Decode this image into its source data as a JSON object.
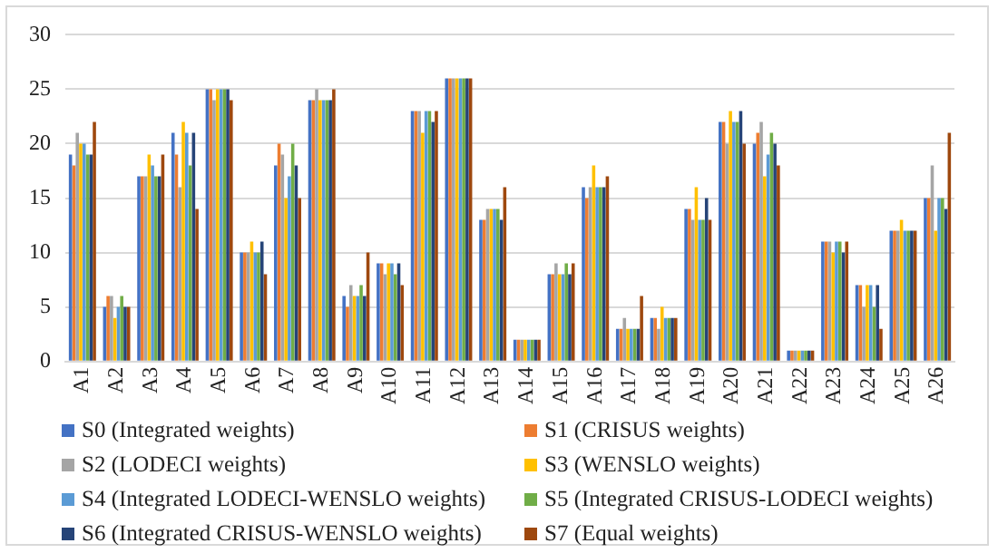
{
  "chart_data": {
    "type": "bar",
    "categories": [
      "A1",
      "A2",
      "A3",
      "A4",
      "A5",
      "A6",
      "A7",
      "A8",
      "A9",
      "A10",
      "A11",
      "A12",
      "A13",
      "A14",
      "A15",
      "A16",
      "A17",
      "A18",
      "A19",
      "A20",
      "A21",
      "A22",
      "A23",
      "A24",
      "A25",
      "A26"
    ],
    "series": [
      {
        "name": "S0 (Integrated weights)",
        "color": "#4472c4",
        "values": [
          19,
          5,
          17,
          21,
          25,
          10,
          18,
          24,
          6,
          9,
          23,
          26,
          13,
          2,
          8,
          16,
          3,
          4,
          14,
          22,
          20,
          1,
          11,
          7,
          12,
          15
        ]
      },
      {
        "name": "S1 (CRISUS weights)",
        "color": "#ed7d31",
        "values": [
          18,
          6,
          17,
          19,
          25,
          10,
          20,
          24,
          5,
          9,
          23,
          26,
          13,
          2,
          8,
          15,
          3,
          4,
          14,
          22,
          21,
          1,
          11,
          7,
          12,
          15
        ]
      },
      {
        "name": "S2 (LODECI weights)",
        "color": "#a5a5a5",
        "values": [
          21,
          6,
          17,
          16,
          24,
          10,
          19,
          25,
          7,
          8,
          23,
          26,
          14,
          2,
          9,
          16,
          4,
          3,
          13,
          20,
          22,
          1,
          11,
          5,
          12,
          18
        ]
      },
      {
        "name": "S3 (WENSLO weights)",
        "color": "#ffc000",
        "values": [
          20,
          4,
          19,
          22,
          25,
          11,
          15,
          24,
          6,
          9,
          21,
          26,
          14,
          2,
          8,
          18,
          3,
          5,
          16,
          23,
          17,
          1,
          10,
          7,
          13,
          12
        ]
      },
      {
        "name": "S4 (Integrated LODECI-WENSLO weights)",
        "color": "#5b9bd5",
        "values": [
          20,
          5,
          18,
          21,
          25,
          10,
          17,
          24,
          6,
          9,
          23,
          26,
          14,
          2,
          8,
          16,
          3,
          4,
          13,
          22,
          19,
          1,
          11,
          7,
          12,
          15
        ]
      },
      {
        "name": "S5 (Integrated CRISUS-LODECI weights)",
        "color": "#70ad47",
        "values": [
          19,
          6,
          17,
          18,
          25,
          10,
          20,
          24,
          7,
          8,
          23,
          26,
          14,
          2,
          9,
          16,
          3,
          4,
          13,
          22,
          21,
          1,
          11,
          5,
          12,
          15
        ]
      },
      {
        "name": "S6 (Integrated CRISUS-WENSLO weights)",
        "color": "#264478",
        "values": [
          19,
          5,
          17,
          21,
          25,
          11,
          18,
          24,
          6,
          9,
          22,
          26,
          13,
          2,
          8,
          16,
          3,
          4,
          15,
          23,
          20,
          1,
          10,
          7,
          12,
          14
        ]
      },
      {
        "name": "S7 (Equal weights)",
        "color": "#9e480e",
        "values": [
          22,
          5,
          19,
          14,
          24,
          8,
          15,
          25,
          10,
          7,
          23,
          26,
          16,
          2,
          9,
          17,
          6,
          4,
          13,
          20,
          18,
          1,
          11,
          3,
          12,
          21
        ]
      }
    ],
    "ylim": [
      0,
      30
    ],
    "yticks": [
      0,
      5,
      10,
      15,
      20,
      25,
      30
    ],
    "grid": "y",
    "legend": "bottom"
  }
}
